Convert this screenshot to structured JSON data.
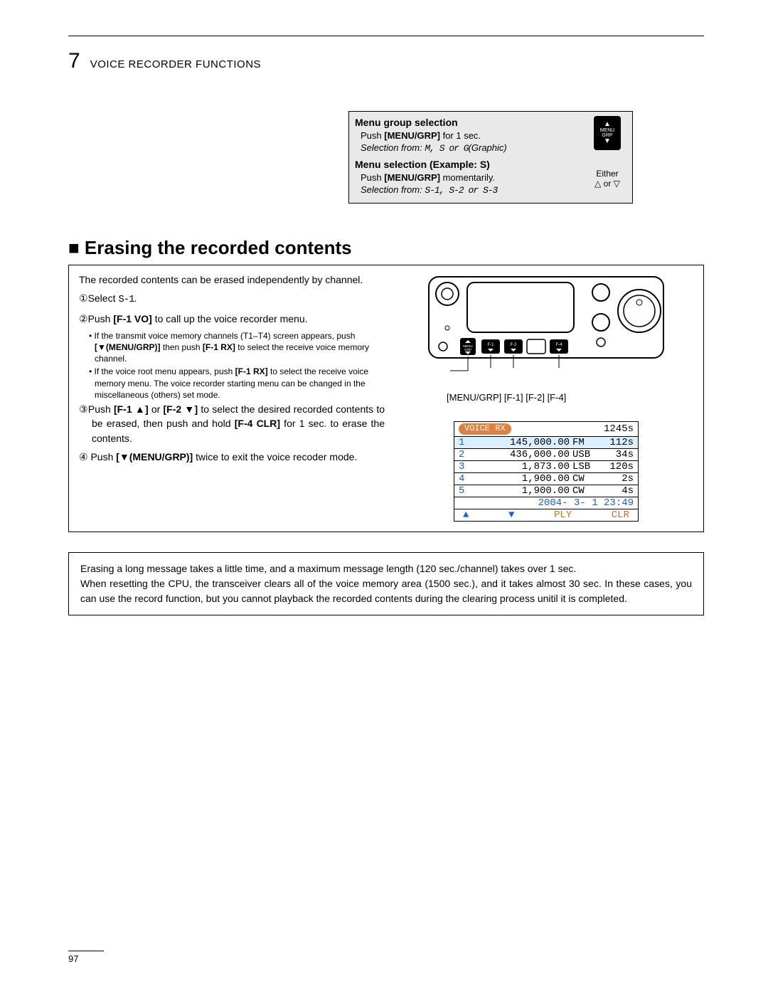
{
  "chapter_number": "7",
  "chapter_title": "VOICE RECORDER FUNCTIONS",
  "menu_box": {
    "title1": "Menu group selection",
    "line1a": "Push ",
    "line1b": "[MENU/GRP]",
    "line1c": " for 1 sec.",
    "line1sel_prefix": "Selection from: ",
    "line1sel_opts": "M, S or G",
    "line1sel_suffix": "(Graphic)",
    "title2": "Menu selection (Example: S)",
    "line2a": "Push ",
    "line2b": "[MENU/GRP]",
    "line2c": " momentarily.",
    "line2sel_prefix": "Selection from: ",
    "line2sel_opts": "S-1, S-2 or S-3",
    "btn_label_top": "MENU",
    "btn_label_bottom": "GRP",
    "either": "Either",
    "either_sym": "△ or ▽"
  },
  "section_title": "■ Erasing the recorded contents",
  "instructions": {
    "intro": "The recorded contents can be erased independently by channel.",
    "step1_num": "①",
    "step1": "Select ",
    "step1_code": "S-1",
    "step1_end": ".",
    "step2_num": "②",
    "step2_a": "Push ",
    "step2_b": "[F-1 VO]",
    "step2_c": " to call up the voice recorder menu.",
    "step2_sub1_a": "If the transmit voice memory channels (T1–T4) screen appears, push ",
    "step2_sub1_b": "[▼(MENU/GRP)]",
    "step2_sub1_c": " then push ",
    "step2_sub1_d": "[F-1 RX]",
    "step2_sub1_e": " to select the receive voice memory channel.",
    "step2_sub2_a": "If the voice root menu appears, push ",
    "step2_sub2_b": "[F-1 RX]",
    "step2_sub2_c": " to select the receive voice memory menu. The voice recorder starting menu can be changed in the miscellaneous (others) set mode.",
    "step3_num": "③",
    "step3_a": "Push ",
    "step3_b": "[F-1 ▲]",
    "step3_c": " or ",
    "step3_d": "[F-2 ▼]",
    "step3_e": " to select the desired recorded contents to be erased, then push and hold ",
    "step3_f": "[F-4 CLR]",
    "step3_g": " for 1 sec. to erase the contents.",
    "step4_num": "④",
    "step4_a": " Push ",
    "step4_b": "[▼(MENU/GRP)]",
    "step4_c": " twice to exit the voice recoder mode."
  },
  "device_labels": "[MENU/GRP] [F-1] [F-2]  [F-4]",
  "device_btn_text": {
    "menu": "MENU",
    "grp": "GRP",
    "f1": "F-1",
    "f2": "F-2",
    "f4": "F-4"
  },
  "screen": {
    "colors": {
      "badge_bg": "#e08040",
      "row_highlight": "#dcefff",
      "num_color": "#1a5fd0",
      "orange": "#d07020"
    },
    "header_badge": "VOICE RX",
    "header_time": "1245s",
    "rows": [
      {
        "n": "1",
        "freq": "145,000.00",
        "mode": "FM",
        "time": "112s",
        "hl": true
      },
      {
        "n": "2",
        "freq": "436,000.00",
        "mode": "USB",
        "time": "34s",
        "hl": false
      },
      {
        "n": "3",
        "freq": "1,873.00",
        "mode": "LSB",
        "time": "120s",
        "hl": false
      },
      {
        "n": "4",
        "freq": "1,900.00",
        "mode": "CW",
        "time": "2s",
        "hl": false
      },
      {
        "n": "5",
        "freq": "1,900.00",
        "mode": "CW",
        "time": "4s",
        "hl": false
      }
    ],
    "date": "2004- 3- 1 23:49",
    "footer": {
      "up": "▲",
      "down": "▼",
      "ply": "PLY",
      "clr": "CLR"
    }
  },
  "note": {
    "p1": "Erasing a long message takes a little time, and a maximum message length (120 sec./channel) takes over 1 sec.",
    "p2": "When resetting the CPU, the transceiver clears all of the voice memory area (1500 sec.), and it takes almost 30 sec. In these cases, you can use the record function, but you cannot playback the recorded contents during the clearing process unitil it is completed."
  },
  "page_number": "97"
}
